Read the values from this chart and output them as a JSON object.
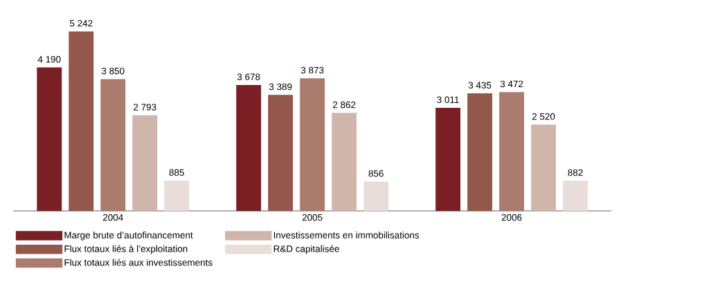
{
  "chart_data": {
    "type": "bar",
    "categories": [
      "2004",
      "2005",
      "2006"
    ],
    "series": [
      {
        "name": "Marge brute d’autofinancement",
        "color": "#7a1f23",
        "values": [
          4190,
          3678,
          3011
        ],
        "value_labels": [
          "4 190",
          "3 678",
          "3 011"
        ]
      },
      {
        "name": "Flux totaux liés à l’exploitation",
        "color": "#94574b",
        "values": [
          5242,
          3389,
          3435
        ],
        "value_labels": [
          "5 242",
          "3 389",
          "3 435"
        ]
      },
      {
        "name": "Flux totaux liés aux investissements",
        "color": "#ab7b6d",
        "values": [
          3850,
          3873,
          3472
        ],
        "value_labels": [
          "3 850",
          "3 873",
          "3 472"
        ]
      },
      {
        "name": "Investissements en immobilisations",
        "color": "#d0b5ab",
        "values": [
          2793,
          2862,
          2520
        ],
        "value_labels": [
          "2 793",
          "2 862",
          "2 520"
        ]
      },
      {
        "name": "R&D capitalisée",
        "color": "#e8ddd8",
        "values": [
          885,
          856,
          882
        ],
        "value_labels": [
          "885",
          "856",
          "882"
        ]
      }
    ],
    "legend": "bottom left"
  }
}
